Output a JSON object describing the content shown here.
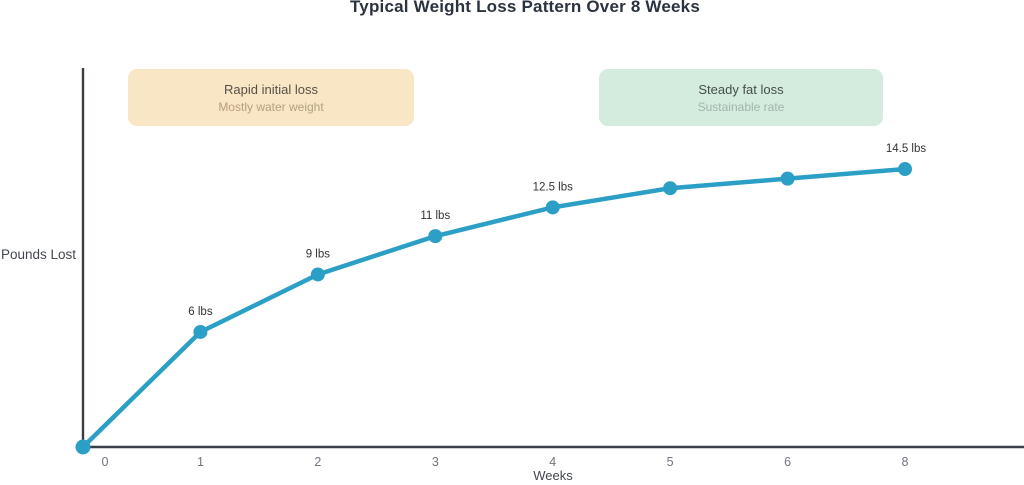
{
  "title": "Typical Weight Loss Pattern Over 8 Weeks",
  "annotations": [
    {
      "title": "Rapid initial loss",
      "subtitle": "Mostly water weight",
      "bg": "#f9e6c5",
      "title_color": "#56504a",
      "subtitle_color": "#b59e7d"
    },
    {
      "title": "Steady fat loss",
      "subtitle": "Sustainable rate",
      "bg": "#d4ecdd",
      "title_color": "#454f49",
      "subtitle_color": "#9fb5aa"
    }
  ],
  "chart_data": {
    "type": "line",
    "x": [
      0,
      1,
      2,
      3,
      4,
      5,
      6,
      8
    ],
    "values": [
      0,
      6,
      9,
      11,
      12.5,
      13.5,
      14,
      14.5
    ],
    "point_labels": [
      "",
      "6 lbs",
      "9 lbs",
      "11 lbs",
      "12.5 lbs",
      "",
      "",
      "14.5 lbs"
    ],
    "title": "Typical Weight Loss Pattern Over 8 Weeks",
    "xlabel": "Weeks",
    "ylabel": "Pounds Lost",
    "xlim": [
      0,
      8
    ],
    "ylim": [
      0,
      20
    ],
    "grid": false,
    "legend": false,
    "line_color": "#2b9fc5",
    "axis_color": "#3a3f47",
    "tick_color": "#70757d",
    "point_label_color": "#333333",
    "axis_label_color": "#44484f"
  }
}
